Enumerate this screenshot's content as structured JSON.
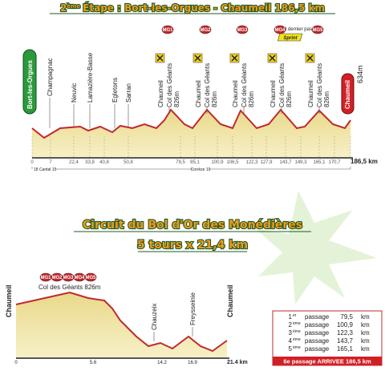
{
  "stage": {
    "title": {
      "number": "2",
      "sup": "ème",
      "text": "Étape : Bort-les-Orgues - Chaumeil 186,5 km"
    },
    "start": "Bort-les-Orgues",
    "finish": "Chaumeil",
    "finish_alt": "634m",
    "places": [
      "Champagnac",
      "Neuvic",
      "Lamazière-Basse",
      "Egletons",
      "Sarran"
    ],
    "climbs": [
      {
        "badge": "MG1",
        "town": "Chaumeil",
        "col": "Col des Géants",
        "alt": "826m"
      },
      {
        "badge": "MG2",
        "town": "Chaumeil",
        "col": "Col des Géants",
        "alt": "826m"
      },
      {
        "badge": "MG3",
        "town": "Chaumeil",
        "col": "Col des Géants",
        "alt": "826m"
      },
      {
        "badge": "MG4",
        "town": "Chaumeil",
        "col": "Col des Géants",
        "alt": "826m"
      },
      {
        "badge": "MG5",
        "town": "Chaumeil",
        "col": "Col des Géants",
        "alt": "826m"
      }
    ],
    "sprint_note": "Avant dernier passage",
    "sprint": "Sprint",
    "km": [
      "0",
      "7",
      "22,4",
      "33,8",
      "40,8",
      "50,8",
      "79,5",
      "85,1",
      "100,9",
      "106,5",
      "122,3",
      "127,9",
      "143,7",
      "149,3",
      "165,1",
      "170,7",
      "186,5 km"
    ],
    "roads": [
      "18 Cantal 15",
      "Corrèze 19"
    ]
  },
  "circuit": {
    "title": "Circuit du Bol d'Or des Monédières",
    "subtitle": "5 tours x 21,4 km",
    "badges": [
      "MG1",
      "MG2",
      "MG3",
      "MG4",
      "MG5"
    ],
    "col": "Col des Géants 826m",
    "places": [
      "Chaumeil",
      "Chauzeix",
      "Freysseinie",
      "Chaumeil"
    ],
    "km": [
      "0",
      "5.6",
      "14.2",
      "16.9",
      "21.4 km"
    ]
  },
  "passages": {
    "rows": [
      [
        "1",
        "er",
        "passage",
        "79,5",
        "km"
      ],
      [
        "2",
        "ème",
        "passage",
        "100,9",
        "km"
      ],
      [
        "3",
        "ème",
        "passage",
        "122,3",
        "km"
      ],
      [
        "4",
        "ème",
        "passage",
        "143,7",
        "km"
      ],
      [
        "5",
        "ème",
        "passage",
        "165,1",
        "km"
      ]
    ],
    "final": "6e passage ARRIVEE 186,5 km"
  }
}
